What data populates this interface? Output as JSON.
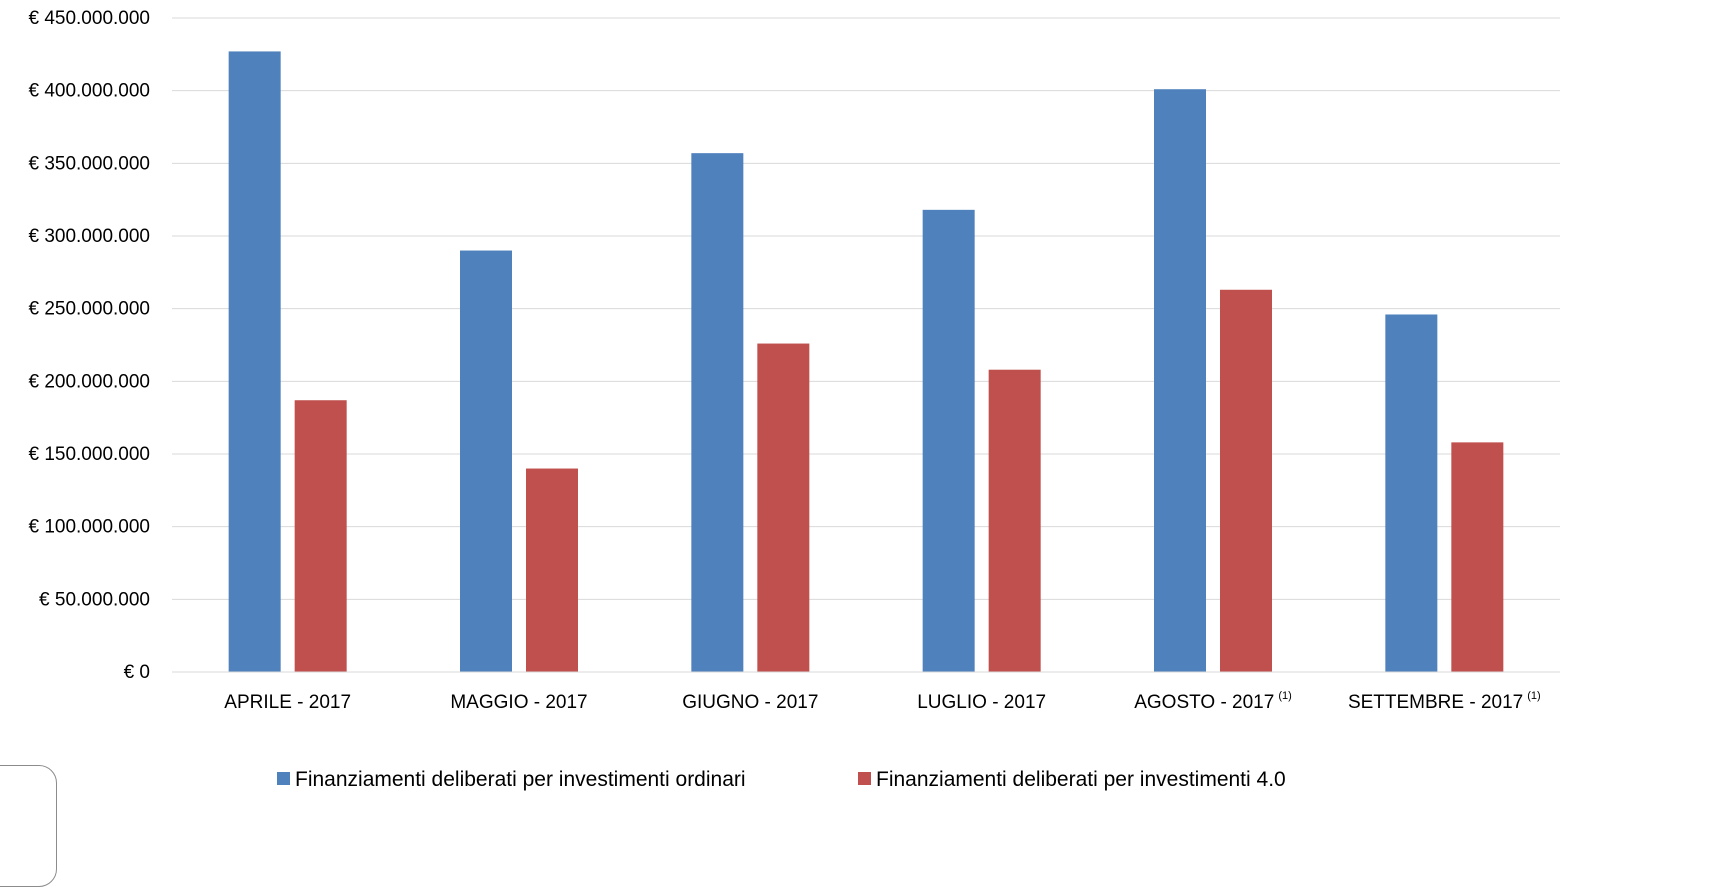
{
  "chart_data": {
    "type": "bar",
    "categories": [
      "APRILE - 2017",
      "MAGGIO - 2017",
      "GIUGNO - 2017",
      "LUGLIO - 2017",
      "AGOSTO - 2017",
      "SETTEMBRE - 2017"
    ],
    "category_notes": [
      "",
      "",
      "",
      "",
      "(1)",
      "(1)"
    ],
    "series": [
      {
        "name": "Finanziamenti deliberati per investimenti ordinari",
        "color": "#4f81bd",
        "values": [
          427000000,
          290000000,
          357000000,
          318000000,
          401000000,
          246000000
        ]
      },
      {
        "name": "Finanziamenti deliberati per investimenti 4.0",
        "color": "#c0504d",
        "values": [
          187000000,
          140000000,
          226000000,
          208000000,
          263000000,
          158000000
        ]
      }
    ],
    "ylim": [
      0,
      450000000
    ],
    "y_ticks": [
      0,
      50000000,
      100000000,
      150000000,
      200000000,
      250000000,
      300000000,
      350000000,
      400000000,
      450000000
    ],
    "y_tick_labels": [
      "€ 0",
      "€ 50.000.000",
      "€ 100.000.000",
      "€ 150.000.000",
      "€ 200.000.000",
      "€ 250.000.000",
      "€ 300.000.000",
      "€ 350.000.000",
      "€ 400.000.000",
      "€ 450.000.000"
    ],
    "grid": true,
    "legend_position": "bottom",
    "title": "",
    "xlabel": "",
    "ylabel": ""
  }
}
